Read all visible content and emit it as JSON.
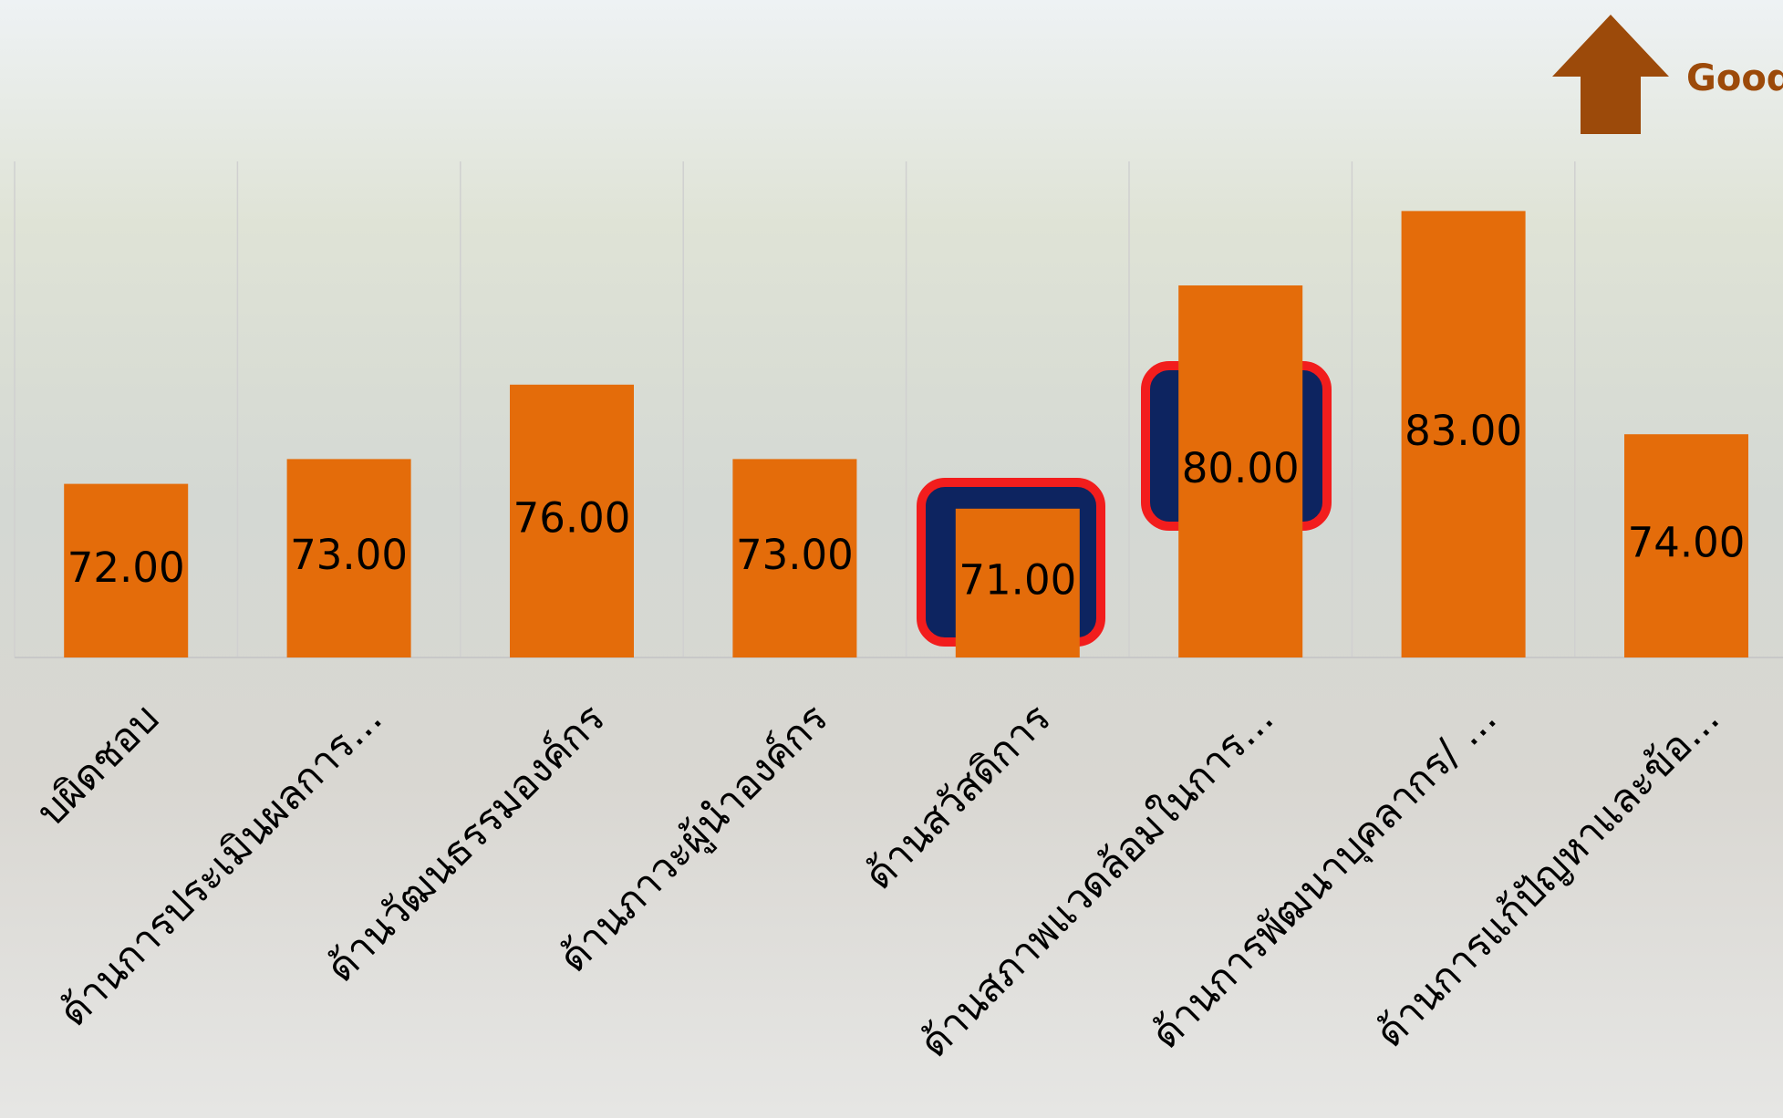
{
  "chart_data": {
    "type": "bar",
    "categories": [
      "บผิดชอบ",
      "ด้านการประเมินผลการ...",
      "ด้านวัฒนธรรมองค์กร",
      "ด้านภาวะผู้นำองค์กร",
      "ด้านสวัสดิการ",
      "ด้านสภาพแวดล้อมในการ...",
      "ด้านการพัฒนาบุคลากร/ ...",
      "ด้านการแก้ปัญหาและข้อ..."
    ],
    "values": [
      72,
      73,
      76,
      73,
      71,
      80,
      83,
      74
    ],
    "value_labels": [
      "72.00",
      "73.00",
      "76.00",
      "73.00",
      "71.00",
      "80.00",
      "83.00",
      "74.00"
    ],
    "color": "#e46c0a",
    "ylim": [
      65,
      85
    ],
    "annotation": "Good"
  }
}
